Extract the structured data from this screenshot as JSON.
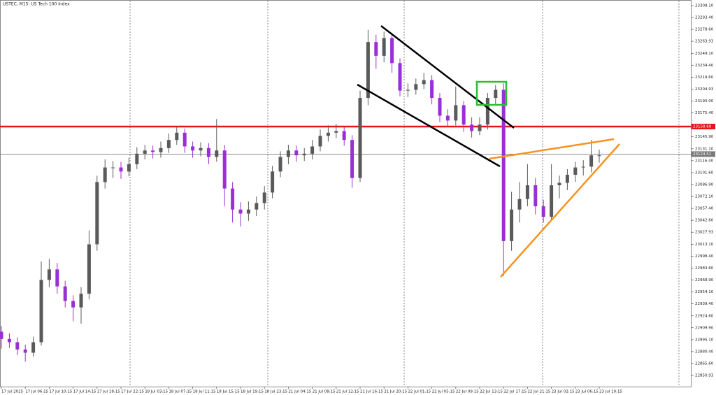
{
  "chart_data": {
    "type": "candlestick",
    "title": "USTEC, M15: US Tech 100 Index",
    "categories": [
      "17 Jul 2025",
      null,
      null,
      "17 Jul 06:15",
      null,
      null,
      "17 Jul 10:15",
      null,
      null,
      "17 Jul 14:15",
      null,
      null,
      "17 Jul 18:15",
      null,
      null,
      "17 Jul 22:15",
      null,
      null,
      "18 Jul 03:15",
      null,
      null,
      "18 Jul 07:15",
      null,
      null,
      "18 Jul 11:15",
      null,
      null,
      "18 Jul 15:15",
      null,
      null,
      "18 Jul 19:15",
      null,
      null,
      "18 Jul 23:15",
      null,
      null,
      "21 Jul 04:15",
      null,
      null,
      "21 Jul 08:15",
      null,
      null,
      "21 Jul 12:15",
      null,
      null,
      "21 Jul 16:15",
      null,
      null,
      "21 Jul 20:15",
      null,
      null,
      "22 Jul 01:15",
      null,
      null,
      "22 Jul 05:15",
      null,
      null,
      "22 Jul 09:15",
      null,
      null,
      "22 Jul 13:15",
      null,
      null,
      "22 Jul 17:15",
      null,
      null,
      "22 Jul 21:15",
      null,
      null,
      "23 Jul 02:15",
      null,
      null,
      "23 Jul 06:15",
      null,
      null,
      "23 Jul 10:15"
    ],
    "candles": [
      [
        22905,
        22912,
        22884,
        22896
      ],
      [
        22896,
        22903,
        22885,
        22892
      ],
      [
        22892,
        22898,
        22876,
        22883
      ],
      [
        22883,
        22889,
        22868,
        22879
      ],
      [
        22879,
        22899,
        22874,
        22892
      ],
      [
        22892,
        22992,
        22888,
        22969
      ],
      [
        22969,
        22995,
        22960,
        22982
      ],
      [
        22982,
        22990,
        22952,
        22961
      ],
      [
        22961,
        22968,
        22935,
        22943
      ],
      [
        22943,
        22950,
        22918,
        22935
      ],
      [
        22935,
        22960,
        22915,
        22952
      ],
      [
        22952,
        23030,
        22945,
        23013
      ],
      [
        23013,
        23098,
        23005,
        23090
      ],
      [
        23090,
        23118,
        23082,
        23108
      ],
      [
        23108,
        23116,
        23095,
        23108
      ],
      [
        23108,
        23115,
        23094,
        23103
      ],
      [
        23103,
        23120,
        23097,
        23112
      ],
      [
        23112,
        23133,
        23106,
        23125
      ],
      [
        23125,
        23136,
        23118,
        23129
      ],
      [
        23129,
        23135,
        23119,
        23127
      ],
      [
        23127,
        23140,
        23120,
        23132
      ],
      [
        23132,
        23150,
        23126,
        23142
      ],
      [
        23142,
        23159,
        23136,
        23151
      ],
      [
        23151,
        23156,
        23126,
        23134
      ],
      [
        23134,
        23140,
        23120,
        23129
      ],
      [
        23129,
        23139,
        23122,
        23132
      ],
      [
        23132,
        23138,
        23112,
        23121
      ],
      [
        23121,
        23168,
        23115,
        23129
      ],
      [
        23129,
        23136,
        23060,
        23082
      ],
      [
        23082,
        23090,
        23040,
        23056
      ],
      [
        23056,
        23065,
        23035,
        23051
      ],
      [
        23051,
        23066,
        23042,
        23056
      ],
      [
        23056,
        23072,
        23048,
        23064
      ],
      [
        23064,
        23085,
        23056,
        23077
      ],
      [
        23077,
        23110,
        23070,
        23103
      ],
      [
        23103,
        23128,
        23096,
        23121
      ],
      [
        23121,
        23136,
        23112,
        23129
      ],
      [
        23129,
        23135,
        23115,
        23123
      ],
      [
        23123,
        23132,
        23116,
        23125
      ],
      [
        23125,
        23142,
        23118,
        23134
      ],
      [
        23134,
        23155,
        23128,
        23147
      ],
      [
        23147,
        23160,
        23140,
        23151
      ],
      [
        23151,
        23162,
        23144,
        23153
      ],
      [
        23153,
        23158,
        23135,
        23142
      ],
      [
        23142,
        23148,
        23083,
        23095
      ],
      [
        23095,
        23203,
        23090,
        23194
      ],
      [
        23194,
        23278,
        23185,
        23263
      ],
      [
        23263,
        23272,
        23230,
        23246
      ],
      [
        23246,
        23276,
        23238,
        23268
      ],
      [
        23268,
        23274,
        23225,
        23237
      ],
      [
        23237,
        23243,
        23196,
        23203
      ],
      [
        23203,
        23212,
        23195,
        23204
      ],
      [
        23204,
        23218,
        23198,
        23211
      ],
      [
        23211,
        23225,
        23205,
        23216
      ],
      [
        23216,
        23222,
        23186,
        23194
      ],
      [
        23194,
        23200,
        23164,
        23172
      ],
      [
        23172,
        23180,
        23158,
        23166
      ],
      [
        23166,
        23208,
        23160,
        23185
      ],
      [
        23185,
        23190,
        23152,
        23161
      ],
      [
        23161,
        23170,
        23145,
        23153
      ],
      [
        23153,
        23170,
        23148,
        23161
      ],
      [
        23161,
        23200,
        23155,
        23194
      ],
      [
        23194,
        23210,
        23186,
        23204
      ],
      [
        23204,
        23212,
        22974,
        23017
      ],
      [
        23017,
        23078,
        23005,
        23056
      ],
      [
        23056,
        23090,
        23040,
        23069
      ],
      [
        23069,
        23112,
        23060,
        23086
      ],
      [
        23086,
        23095,
        23050,
        23060
      ],
      [
        23060,
        23068,
        23040,
        23047
      ],
      [
        23047,
        23112,
        23042,
        23086
      ],
      [
        23086,
        23098,
        23070,
        23089
      ],
      [
        23089,
        23106,
        23080,
        23099
      ],
      [
        23099,
        23115,
        23090,
        23108
      ],
      [
        23108,
        23117,
        23098,
        23109
      ],
      [
        23109,
        23142,
        23102,
        23123
      ],
      [
        23123,
        23130,
        23114,
        23123
      ]
    ],
    "up_color": "#5a5a5a",
    "down_color": "#9b2fd6",
    "ylim": [
      22850.93,
      23308.1
    ],
    "yticks": [
      {
        "value": 23308.1,
        "label": "23308.10"
      },
      {
        "value": 23293.4,
        "label": "23293.40"
      },
      {
        "value": 23278.6,
        "label": "23278.60"
      },
      23263.93,
      {
        "value": 23249.1,
        "label": "23249.10"
      },
      {
        "value": 23234.4,
        "label": "23234.40"
      },
      {
        "value": 23219.6,
        "label": "23219.60"
      },
      23204.93,
      {
        "value": 23190,
        "label": "23190.00"
      },
      {
        "value": 23175.4,
        "label": "23175.40"
      },
      {
        "value": 23145.9,
        "label": "23145.90"
      },
      {
        "value": 23131.1,
        "label": "23131.10"
      },
      {
        "value": 23116.4,
        "label": "23116.40"
      },
      {
        "value": 23101.6,
        "label": "23101.60"
      },
      {
        "value": 23086.9,
        "label": "23086.90"
      },
      {
        "value": 23072.1,
        "label": "23072.10"
      },
      {
        "value": 23057.4,
        "label": "23057.40"
      },
      {
        "value": 23042.6,
        "label": "23042.60"
      },
      23027.93,
      {
        "value": 23013.1,
        "label": "23013.10"
      },
      {
        "value": 22998.4,
        "label": "22998.40"
      },
      {
        "value": 22983.6,
        "label": "22983.60"
      },
      {
        "value": 22968.9,
        "label": "22968.90"
      },
      {
        "value": 22954.1,
        "label": "22954.10"
      },
      {
        "value": 22939.4,
        "label": "22939.40"
      },
      {
        "value": 22924.6,
        "label": "22924.60"
      },
      {
        "value": 22909.9,
        "label": "22909.90"
      },
      {
        "value": 22895.1,
        "label": "22895.10"
      },
      {
        "value": 22880.4,
        "label": "22880.40"
      },
      {
        "value": 22865.6,
        "label": "22865.60"
      },
      22850.93
    ],
    "levels": [
      {
        "value": 23158.6,
        "label": "23158.60",
        "color": "#e8141b"
      },
      {
        "value": 23124.51,
        "label": "23124.51",
        "color": "#7a7a7a"
      }
    ]
  }
}
